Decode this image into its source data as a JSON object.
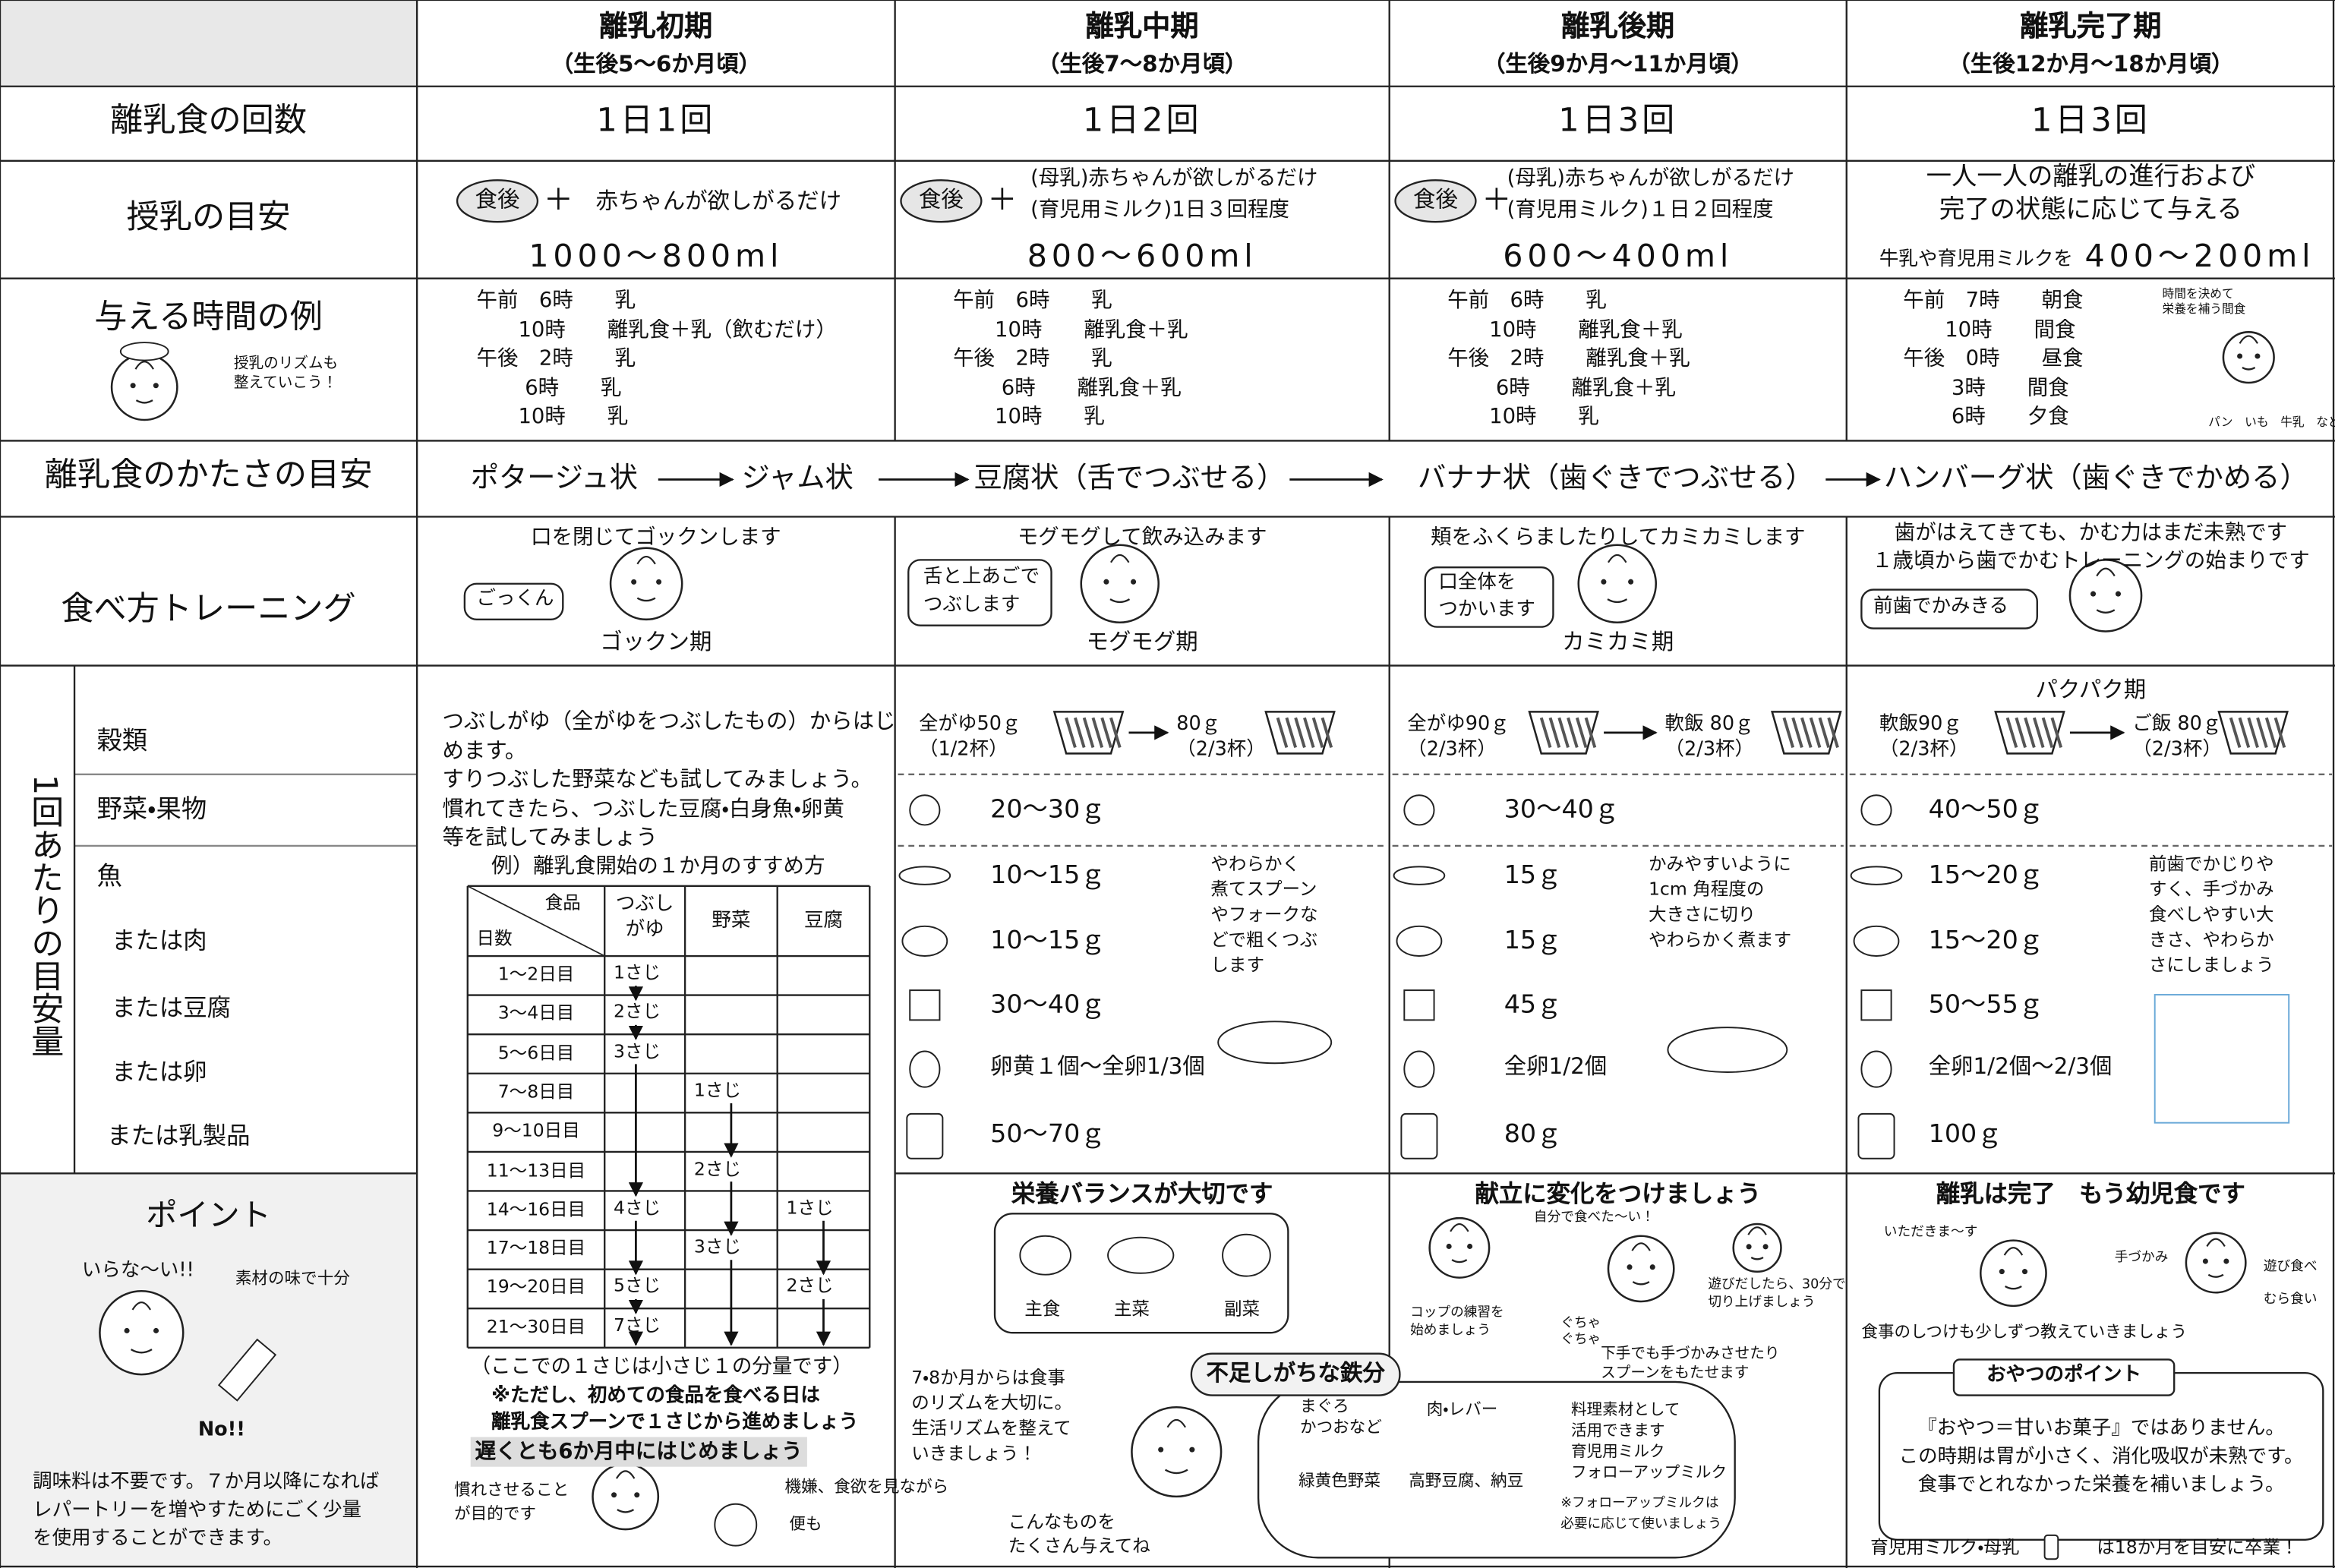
{
  "header": {
    "stages": [
      {
        "name": "離乳初期",
        "period": "（生後5〜6か月頃）"
      },
      {
        "name": "離乳中期",
        "period": "（生後7〜8か月頃）"
      },
      {
        "name": "離乳後期",
        "period": "（生後9か月〜11か月頃）"
      },
      {
        "name": "離乳完了期",
        "period": "（生後12か月〜18か月頃）"
      }
    ]
  },
  "frequency": {
    "label": "離乳食の回数",
    "values": [
      "1日1回",
      "1日2回",
      "1日3回",
      "1日3回"
    ]
  },
  "nursing": {
    "label": "授乳の目安",
    "badge": "食後",
    "plus": "＋",
    "texts": [
      "赤ちゃんが欲しがるだけ",
      "(母乳)赤ちゃんが欲しがるだけ\n(育児用ミルク)1日３回程度",
      "(母乳)赤ちゃんが欲しがるだけ\n(育児用ミルク)１日２回程度",
      "一人一人の離乳の進行および\n完了の状態に応じて与える"
    ],
    "amounts": [
      "1000〜800ml",
      "800〜600ml",
      "600〜400ml",
      "400〜200ml"
    ],
    "prefix": "牛乳や育児用ミルクを"
  },
  "schedule": {
    "label": "与える時間の例",
    "note": "授乳のリズムも\n整えていこう！",
    "times": [
      "午前　6時　　乳\n　　10時　　離乳食＋乳（飲むだけ）\n午後　2時　　乳\n　　 6時　　乳\n　　10時　　乳",
      "午前　6時　　乳\n　　10時　　離乳食＋乳\n午後　2時　　乳\n　　 6時　　離乳食＋乳\n　　10時　　乳",
      "午前　6時　　乳\n　　10時　　離乳食＋乳\n午後　2時　　離乳食＋乳\n　　 6時　　離乳食＋乳\n　　10時　　乳",
      "午前　7時　　朝食\n　　10時　　間食\n午後　0時　　昼食\n　　 3時　　間食\n　　 6時　　夕食"
    ],
    "snack_note": "時間を決めて\n栄養を補う間食",
    "snack_foods": "パン　いも　牛乳　など"
  },
  "texture": {
    "label": "離乳食のかたさの目安",
    "items": [
      "ポタージュ状",
      "ジャム状",
      "豆腐状（舌でつぶせる）",
      "バナナ状（歯ぐきでつぶせる）",
      "ハンバーグ状（歯ぐきでかめる）"
    ]
  },
  "training": {
    "label": "食べ方トレーニング",
    "captions": [
      "口を閉じてゴックンします",
      "モグモグして飲み込みます",
      "頬をふくらましたりしてカミカミします",
      "歯がはえてきても、かむ力はまだ未熟です\n１歳頃から歯でかむトレーニングの始まりです"
    ],
    "bubbles": [
      "ごっくん",
      "舌と上あごで\nつぶします",
      "口全体を\nつかいます",
      "前歯でかみきる"
    ],
    "phases": [
      "ゴックン期",
      "モグモグ期",
      "カミカミ期",
      "パクパク期"
    ]
  },
  "amounts": {
    "label": "1回あたりの目安量",
    "categories": [
      "穀類",
      "野菜・果物",
      "魚",
      "または肉",
      "または豆腐",
      "または卵",
      "または乳製品"
    ],
    "early": {
      "intro": "つぶしがゆ（全がゆをつぶしたもの）からはじ\nめます。\nすりつぶした野菜なども試してみましょう。\n慣れてきたら、つぶした豆腐・白身魚・卵黄\n等を試してみましょう",
      "table_title": "例）離乳食開始の１か月のすすめ方",
      "head_food": "食品",
      "head_days": "日数",
      "columns": [
        "つぶし\nがゆ",
        "野菜",
        "豆腐"
      ],
      "rows": [
        [
          "1〜2日目",
          "1さじ",
          null,
          null
        ],
        [
          "3〜4日目",
          "2さじ",
          null,
          null
        ],
        [
          "5〜6日目",
          "3さじ",
          null,
          null
        ],
        [
          "7〜8日目",
          null,
          "1さじ",
          null
        ],
        [
          "9〜10日目",
          null,
          null,
          null
        ],
        [
          "11〜13日目",
          null,
          "2さじ",
          null
        ],
        [
          "14〜16日目",
          "4さじ",
          null,
          "1さじ"
        ],
        [
          "17〜18日目",
          null,
          "3さじ",
          null
        ],
        [
          "19〜20日目",
          "5さじ",
          null,
          "2さじ"
        ],
        [
          "21〜30日目",
          "7さじ",
          null,
          null
        ]
      ],
      "spoon_note": "（ここでの１さじは小さじ１の分量です）",
      "first_day_note": "※ただし、初めての食品を食べる日は\n離乳食スプーンで１さじから進めましょう",
      "deadline": "遅くとも6か月中にはじめましょう",
      "purpose": "慣れさせること\nが目的です",
      "watch": "機嫌、食欲を見ながら",
      "stool": "便も"
    },
    "stages": [
      {
        "grain_from": "全がゆ50ｇ\n（1/2杯）",
        "grain_to": "80ｇ\n（2/3杯）",
        "values": [
          "20〜30ｇ",
          "10〜15ｇ",
          "10〜15ｇ",
          "30〜40ｇ",
          "卵黄１個〜全卵1/3個",
          "50〜70ｇ"
        ],
        "note": "やわらかく\n煮てスプーン\nやフォークな\nどで粗くつぶ\nします"
      },
      {
        "grain_from": "全がゆ90ｇ\n（2/3杯）",
        "grain_to": "軟飯 80ｇ\n（2/3杯）",
        "values": [
          "30〜40ｇ",
          "15ｇ",
          "15ｇ",
          "45ｇ",
          "全卵1/2個",
          "80ｇ"
        ],
        "note": "かみやすいように\n1cm 角程度の\n大きさに切り\nやわらかく煮ます"
      },
      {
        "grain_from": "軟飯90ｇ\n（2/3杯）",
        "grain_to": "ご飯 80ｇ\n（2/3杯）",
        "values": [
          "40〜50ｇ",
          "15〜20ｇ",
          "15〜20ｇ",
          "50〜55ｇ",
          "全卵1/2個〜2/3個",
          "100ｇ"
        ],
        "note": "前歯でかじりや\nすく、手づかみ\n食べしやすい大\nきさ、やわらか\nさにしましょう"
      }
    ]
  },
  "point": {
    "title": "ポイント",
    "shout": "いらな〜い!!",
    "taste": "素材の味で十分",
    "no": "No!!",
    "text": "調味料は不要です。７か月以降になれば\nレパートリーを増やすためにごく少量\nを使用することができます。"
  },
  "bottom": {
    "middle": {
      "title": "栄養バランスが大切です",
      "staple": "主食",
      "main": "主菜",
      "side": "副菜",
      "rhythm": "7・8か月からは食事\nのリズムを大切に。\n生活リズムを整えて\nいきましょう！",
      "iron": "不足しがちな鉄分",
      "fish": "まぐろ\nかつおなど",
      "greens": "緑黄色野菜",
      "meat": "肉・レバー",
      "soy": "高野豆腐、納豆",
      "milk": "料理素材として\n活用できます\n育児用ミルク\nフォローアップミルク",
      "milk_note": "※フォローアップミルクは\n必要に応じて使いましょう",
      "give": "こんなものを\nたくさん与えてね"
    },
    "late": {
      "title": "献立に変化をつけましょう",
      "self": "自分で食べた〜い！",
      "cup": "コップの練習を\n始めましょう",
      "play": "遊びだしたら、30分で\n切り上げましょう",
      "mess": "ぐちゃ\nぐちゃ",
      "hands": "下手でも手づかみさせたり\nスプーンをもたせます"
    },
    "complete": {
      "title": "離乳は完了　もう幼児食です",
      "itadakimasu": "いただきま〜す",
      "grab": "手づかみ",
      "play": "遊び食べ",
      "picky": "むら食い",
      "manners": "食事のしつけも少しずつ教えていきましょう",
      "snack_title": "おやつのポイント",
      "snack_text": "『おやつ＝甘いお菓子』ではありません。\nこの時期は胃が小さく、消化吸収が未熟です。\n食事でとれなかった栄養を補いましょう。",
      "milk": "育児用ミルク・母乳",
      "graduate": "は18か月を目安に卒業！"
    }
  }
}
